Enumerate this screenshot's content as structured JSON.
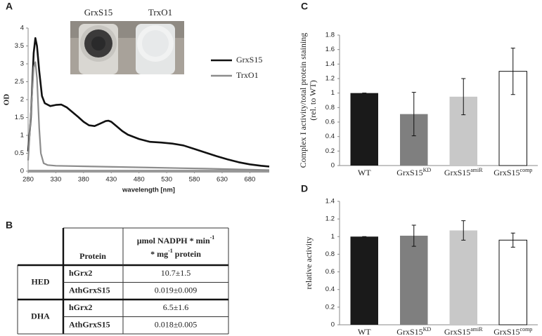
{
  "panels": {
    "a": "A",
    "b": "B",
    "c": "C",
    "d": "D"
  },
  "inset": {
    "left_label": "GrxS15",
    "right_label": "TrxO1"
  },
  "chart_data": [
    {
      "type": "line",
      "x_label": "wavelength [nm]",
      "y_label": "OD",
      "xlim": [
        280,
        715
      ],
      "xticks": [
        280,
        330,
        380,
        430,
        480,
        530,
        580,
        630,
        680
      ],
      "ylim": [
        0,
        4
      ],
      "yticks": [
        0,
        0.5,
        1,
        1.5,
        2,
        2.5,
        3,
        3.5,
        4
      ],
      "series": [
        {
          "name": "GrxS15",
          "color": "#111111",
          "x": [
            280,
            285,
            290,
            293,
            296,
            300,
            305,
            310,
            320,
            330,
            340,
            350,
            360,
            370,
            380,
            390,
            400,
            410,
            420,
            425,
            430,
            440,
            450,
            460,
            480,
            500,
            520,
            540,
            560,
            580,
            600,
            620,
            640,
            660,
            680,
            700,
            715
          ],
          "values": [
            0.55,
            1.5,
            3.3,
            3.72,
            3.5,
            2.8,
            2.1,
            1.9,
            1.82,
            1.85,
            1.86,
            1.78,
            1.65,
            1.52,
            1.38,
            1.28,
            1.26,
            1.33,
            1.4,
            1.41,
            1.38,
            1.25,
            1.12,
            1.02,
            0.9,
            0.82,
            0.8,
            0.77,
            0.72,
            0.62,
            0.52,
            0.42,
            0.33,
            0.25,
            0.19,
            0.15,
            0.13
          ]
        },
        {
          "name": "TrxO1",
          "color": "#8c8c8c",
          "x": [
            280,
            285,
            290,
            293,
            296,
            300,
            303,
            308,
            315,
            330,
            400,
            500,
            600,
            715
          ],
          "values": [
            0.3,
            1.6,
            2.9,
            3.05,
            2.6,
            1.2,
            0.5,
            0.22,
            0.17,
            0.15,
            0.13,
            0.1,
            0.07,
            0.03
          ]
        }
      ]
    },
    {
      "type": "bar",
      "y_label": [
        "Complex I activity/total protein staining",
        "(rel. to WT)"
      ],
      "categories": [
        {
          "text": "WT"
        },
        {
          "text": "GrxS15",
          "sup": "KD"
        },
        {
          "text": "GrxS15",
          "sup": "amiR"
        },
        {
          "text": "GrxS15",
          "sup": "comp"
        }
      ],
      "values": [
        1.0,
        0.71,
        0.95,
        1.3
      ],
      "errors": [
        0,
        0.3,
        0.25,
        0.32
      ],
      "colors": [
        "#1a1a1a",
        "#7f7f7f",
        "#c8c8c8",
        "#ffffff"
      ],
      "ylim": [
        0,
        1.8
      ],
      "yticks": [
        0,
        0.2,
        0.4,
        0.6,
        0.8,
        1,
        1.2,
        1.4,
        1.6,
        1.8
      ]
    },
    {
      "type": "bar",
      "y_label": [
        "relative activity"
      ],
      "categories": [
        {
          "text": "WT"
        },
        {
          "text": "GrxS15",
          "sup": "KD"
        },
        {
          "text": "GrxS15",
          "sup": "amiR"
        },
        {
          "text": "GrxS15",
          "sup": "comp"
        }
      ],
      "values": [
        1.0,
        1.01,
        1.07,
        0.96
      ],
      "errors": [
        0,
        0.12,
        0.11,
        0.08
      ],
      "colors": [
        "#1a1a1a",
        "#7f7f7f",
        "#c8c8c8",
        "#ffffff"
      ],
      "ylim": [
        0,
        1.4
      ],
      "yticks": [
        0,
        0.2,
        0.4,
        0.6,
        0.8,
        1,
        1.2,
        1.4
      ]
    }
  ],
  "table": {
    "header": {
      "protein": "Protein",
      "rate_line1": [
        "µmol NADPH * min",
        "-1"
      ],
      "rate_line2": [
        "* mg",
        "-1",
        " protein"
      ]
    },
    "groups": [
      {
        "label": "HED",
        "rows": [
          {
            "protein": "hGrx2",
            "value": "10.7±1.5"
          },
          {
            "protein": "AthGrxS15",
            "value": "0.019±0.009"
          }
        ]
      },
      {
        "label": "DHA",
        "rows": [
          {
            "protein": "hGrx2",
            "value": "6.5±1.6"
          },
          {
            "protein": "AthGrxS15",
            "value": "0.018±0.005"
          }
        ]
      }
    ]
  }
}
